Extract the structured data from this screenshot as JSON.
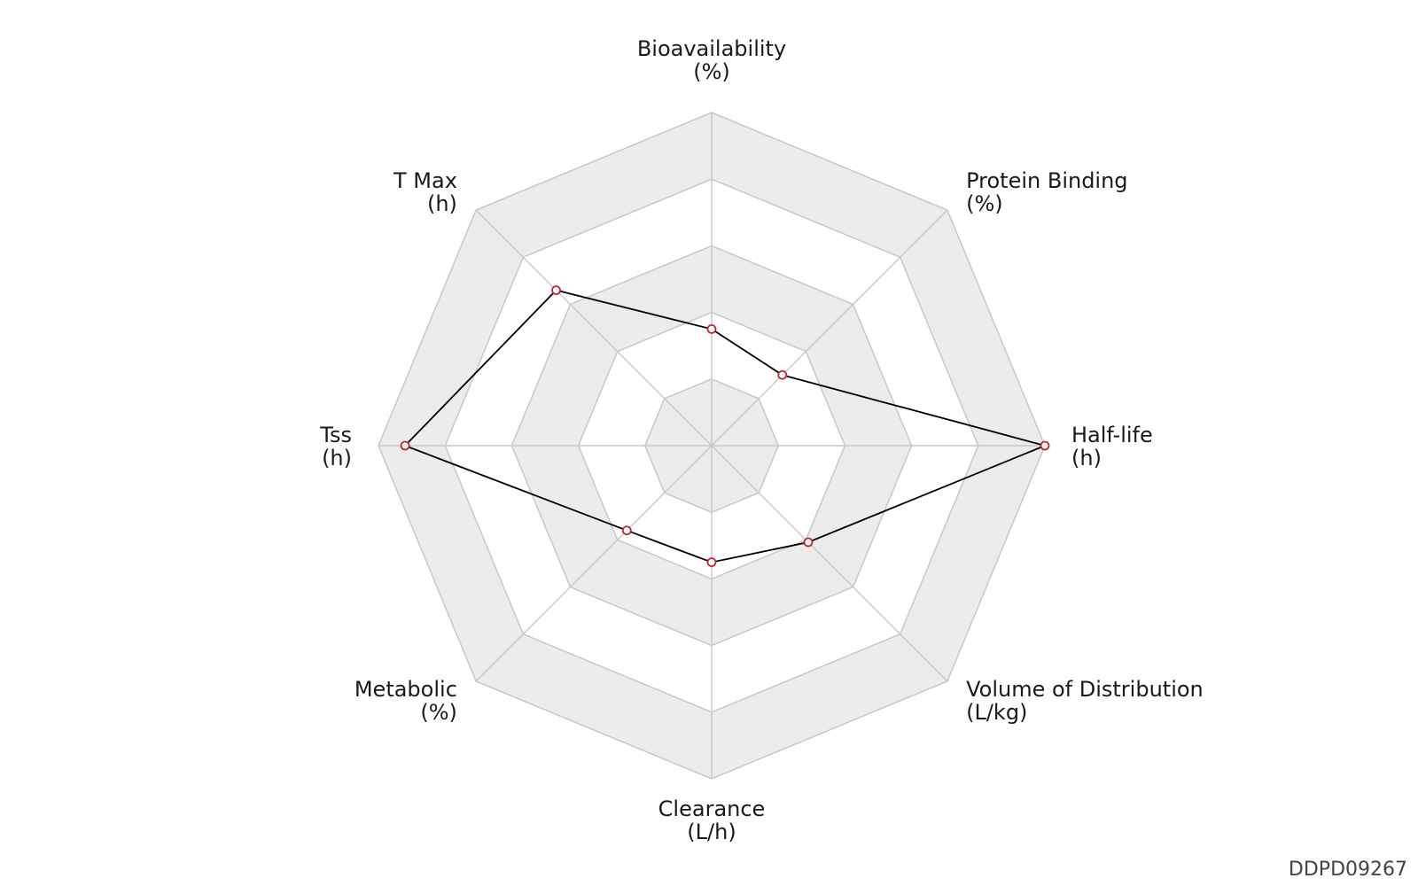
{
  "chart_data": {
    "type": "radar",
    "title": "",
    "axes": [
      {
        "name": "Bioavailability",
        "unit": "(%)"
      },
      {
        "name": "Protein Binding",
        "unit": "(%)"
      },
      {
        "name": "Half-life",
        "unit": "(h)"
      },
      {
        "name": "Volume of Distribution",
        "unit": "(L/kg)"
      },
      {
        "name": "Clearance",
        "unit": "(L/h)"
      },
      {
        "name": "Metabolic",
        "unit": "(%)"
      },
      {
        "name": "Tss",
        "unit": "(h)"
      },
      {
        "name": "T Max",
        "unit": "(h)"
      }
    ],
    "values": [
      0.35,
      0.3,
      1.0,
      0.41,
      0.35,
      0.36,
      0.92,
      0.66
    ],
    "rmax": 1.0,
    "rings": 5,
    "grid": true,
    "series_color": "#000000",
    "marker_color": "#c0282d",
    "band_colors": [
      "#ffffff",
      "#ececec"
    ]
  },
  "watermark": "DDPD09267"
}
